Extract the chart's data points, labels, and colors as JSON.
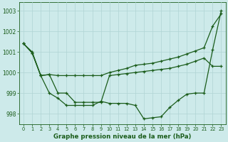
{
  "bg_color": "#cdeaea",
  "grid_color": "#b0d4d4",
  "line_color": "#1a5c1a",
  "marker": "+",
  "xlabel": "Graphe pression niveau de la mer (hPa)",
  "ylim": [
    997.5,
    1003.4
  ],
  "xlim": [
    -0.5,
    23.5
  ],
  "yticks": [
    998,
    999,
    1000,
    1001,
    1002,
    1003
  ],
  "xticks": [
    0,
    1,
    2,
    3,
    4,
    5,
    6,
    7,
    8,
    9,
    10,
    11,
    12,
    13,
    14,
    15,
    16,
    17,
    18,
    19,
    20,
    21,
    22,
    23
  ],
  "line1": [
    1001.4,
    1001.0,
    999.85,
    999.9,
    999.85,
    999.85,
    999.85,
    999.85,
    999.85,
    999.85,
    1000.0,
    1000.1,
    1000.2,
    1000.35,
    1000.4,
    1000.45,
    1000.55,
    1000.65,
    1000.75,
    1000.9,
    1001.05,
    1001.2,
    1002.25,
    1002.85
  ],
  "line2": [
    1001.4,
    1000.95,
    999.85,
    999.9,
    999.0,
    999.0,
    998.55,
    998.55,
    998.55,
    998.55,
    999.85,
    999.9,
    999.95,
    1000.0,
    1000.05,
    1000.1,
    1000.15,
    1000.2,
    1000.3,
    1000.4,
    1000.55,
    1000.7,
    1000.3,
    1000.3
  ],
  "line3": [
    1001.4,
    1000.95,
    999.85,
    999.0,
    998.75,
    998.4,
    998.4,
    998.4,
    998.4,
    998.6,
    998.5,
    998.5,
    998.5,
    998.4,
    997.75,
    997.8,
    997.85,
    998.3,
    998.65,
    998.95,
    999.0,
    999.0,
    1001.1,
    1003.0
  ]
}
